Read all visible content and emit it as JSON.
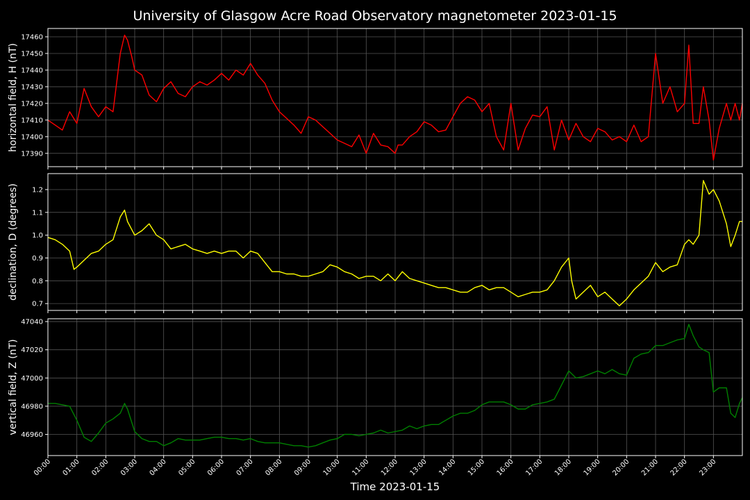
{
  "title": "University of Glasgow Acre Road Observatory magnetometer 2023-01-15",
  "xlabel": "Time 2023-01-15",
  "x_ticks": [
    "00:00",
    "01:00",
    "02:00",
    "03:00",
    "04:00",
    "05:00",
    "06:00",
    "07:00",
    "08:00",
    "09:00",
    "10:00",
    "11:00",
    "12:00",
    "13:00",
    "14:00",
    "15:00",
    "16:00",
    "17:00",
    "18:00",
    "19:00",
    "20:00",
    "21:00",
    "22:00",
    "23:00"
  ],
  "chart_data": [
    {
      "type": "line",
      "ylabel": "horizontal field, H (nT)",
      "color": "#ff0000",
      "x_unit": "hours",
      "xlim": [
        0,
        24
      ],
      "ylim": [
        17382,
        17465
      ],
      "yticks": [
        17390,
        17400,
        17410,
        17420,
        17430,
        17440,
        17450,
        17460
      ],
      "grid": true,
      "x": [
        0,
        0.25,
        0.5,
        0.75,
        1.0,
        1.25,
        1.5,
        1.75,
        2.0,
        2.25,
        2.5,
        2.65,
        2.75,
        2.9,
        3.0,
        3.25,
        3.5,
        3.75,
        4.0,
        4.25,
        4.5,
        4.75,
        5.0,
        5.25,
        5.5,
        5.75,
        6.0,
        6.25,
        6.5,
        6.75,
        7.0,
        7.25,
        7.5,
        7.75,
        8.0,
        8.25,
        8.5,
        8.75,
        9.0,
        9.25,
        9.5,
        9.75,
        10.0,
        10.25,
        10.5,
        10.75,
        11.0,
        11.25,
        11.5,
        11.75,
        12.0,
        12.1,
        12.25,
        12.5,
        12.75,
        13.0,
        13.25,
        13.5,
        13.75,
        14.0,
        14.25,
        14.5,
        14.75,
        15.0,
        15.25,
        15.5,
        15.75,
        16.0,
        16.25,
        16.5,
        16.75,
        17.0,
        17.25,
        17.5,
        17.75,
        18.0,
        18.25,
        18.5,
        18.75,
        19.0,
        19.25,
        19.5,
        19.75,
        20.0,
        20.25,
        20.5,
        20.75,
        21.0,
        21.25,
        21.5,
        21.75,
        22.0,
        22.15,
        22.3,
        22.5,
        22.65,
        22.85,
        23.0,
        23.2,
        23.45,
        23.6,
        23.75,
        23.9,
        24.0
      ],
      "y": [
        17410,
        17407,
        17404,
        17415,
        17408,
        17429,
        17418,
        17412,
        17418,
        17415,
        17450,
        17461,
        17458,
        17448,
        17440,
        17437,
        17425,
        17421,
        17429,
        17433,
        17426,
        17424,
        17430,
        17433,
        17431,
        17434,
        17438,
        17434,
        17440,
        17437,
        17444,
        17437,
        17432,
        17422,
        17415,
        17411,
        17407,
        17402,
        17412,
        17410,
        17406,
        17402,
        17398,
        17396,
        17394,
        17401,
        17390,
        17402,
        17395,
        17394,
        17390,
        17395,
        17395,
        17400,
        17403,
        17409,
        17407,
        17403,
        17404,
        17412,
        17420,
        17424,
        17422,
        17415,
        17420,
        17400,
        17392,
        17420,
        17392,
        17405,
        17413,
        17412,
        17418,
        17392,
        17410,
        17398,
        17408,
        17400,
        17397,
        17405,
        17403,
        17398,
        17400,
        17397,
        17407,
        17397,
        17400,
        17450,
        17420,
        17430,
        17415,
        17420,
        17455,
        17408,
        17408,
        17430,
        17410,
        17386,
        17405,
        17420,
        17410,
        17420,
        17410,
        17420
      ]
    },
    {
      "type": "line",
      "ylabel": "declination, D (degrees)",
      "color": "#ffff00",
      "x_unit": "hours",
      "xlim": [
        0,
        24
      ],
      "ylim": [
        0.67,
        1.27
      ],
      "yticks": [
        0.7,
        0.8,
        0.9,
        1.0,
        1.1,
        1.2
      ],
      "grid": true,
      "x": [
        0,
        0.25,
        0.5,
        0.75,
        0.9,
        1.0,
        1.25,
        1.5,
        1.75,
        2.0,
        2.25,
        2.5,
        2.65,
        2.75,
        3.0,
        3.25,
        3.5,
        3.75,
        4.0,
        4.25,
        4.5,
        4.75,
        5.0,
        5.25,
        5.5,
        5.75,
        6.0,
        6.25,
        6.5,
        6.75,
        7.0,
        7.25,
        7.5,
        7.75,
        8.0,
        8.25,
        8.5,
        8.75,
        9.0,
        9.25,
        9.5,
        9.75,
        10.0,
        10.25,
        10.5,
        10.75,
        11.0,
        11.25,
        11.5,
        11.75,
        12.0,
        12.25,
        12.5,
        12.75,
        13.0,
        13.25,
        13.5,
        13.75,
        14.0,
        14.25,
        14.5,
        14.75,
        15.0,
        15.25,
        15.5,
        15.75,
        16.0,
        16.25,
        16.5,
        16.75,
        17.0,
        17.25,
        17.5,
        17.75,
        18.0,
        18.1,
        18.25,
        18.5,
        18.75,
        19.0,
        19.25,
        19.5,
        19.75,
        20.0,
        20.25,
        20.5,
        20.75,
        21.0,
        21.25,
        21.5,
        21.75,
        22.0,
        22.15,
        22.3,
        22.5,
        22.65,
        22.85,
        23.0,
        23.2,
        23.45,
        23.6,
        23.75,
        23.9,
        24.0
      ],
      "y": [
        0.99,
        0.98,
        0.96,
        0.93,
        0.85,
        0.86,
        0.89,
        0.92,
        0.93,
        0.96,
        0.98,
        1.08,
        1.11,
        1.06,
        1.0,
        1.02,
        1.05,
        1.0,
        0.98,
        0.94,
        0.95,
        0.96,
        0.94,
        0.93,
        0.92,
        0.93,
        0.92,
        0.93,
        0.93,
        0.9,
        0.93,
        0.92,
        0.88,
        0.84,
        0.84,
        0.83,
        0.83,
        0.82,
        0.82,
        0.83,
        0.84,
        0.87,
        0.86,
        0.84,
        0.83,
        0.81,
        0.82,
        0.82,
        0.8,
        0.83,
        0.8,
        0.84,
        0.81,
        0.8,
        0.79,
        0.78,
        0.77,
        0.77,
        0.76,
        0.75,
        0.75,
        0.77,
        0.78,
        0.76,
        0.77,
        0.77,
        0.75,
        0.73,
        0.74,
        0.75,
        0.75,
        0.76,
        0.8,
        0.86,
        0.9,
        0.8,
        0.72,
        0.75,
        0.78,
        0.73,
        0.75,
        0.72,
        0.69,
        0.72,
        0.76,
        0.79,
        0.82,
        0.88,
        0.84,
        0.86,
        0.87,
        0.96,
        0.98,
        0.96,
        1.0,
        1.24,
        1.18,
        1.2,
        1.15,
        1.05,
        0.95,
        1.0,
        1.06,
        1.06
      ]
    },
    {
      "type": "line",
      "ylabel": "vertical field, Z (nT)",
      "color": "#008000",
      "x_unit": "hours",
      "xlim": [
        0,
        24
      ],
      "ylim": [
        46945,
        47042
      ],
      "yticks": [
        46960,
        46980,
        47000,
        47020,
        47040
      ],
      "grid": true,
      "x": [
        0,
        0.25,
        0.5,
        0.75,
        1.0,
        1.25,
        1.5,
        1.75,
        2.0,
        2.25,
        2.5,
        2.65,
        2.75,
        3.0,
        3.25,
        3.5,
        3.75,
        4.0,
        4.25,
        4.5,
        4.75,
        5.0,
        5.25,
        5.5,
        5.75,
        6.0,
        6.25,
        6.5,
        6.75,
        7.0,
        7.25,
        7.5,
        7.75,
        8.0,
        8.25,
        8.5,
        8.75,
        9.0,
        9.25,
        9.5,
        9.75,
        10.0,
        10.25,
        10.5,
        10.75,
        11.0,
        11.25,
        11.5,
        11.75,
        12.0,
        12.25,
        12.5,
        12.75,
        13.0,
        13.25,
        13.5,
        13.75,
        14.0,
        14.25,
        14.5,
        14.75,
        15.0,
        15.25,
        15.5,
        15.75,
        16.0,
        16.25,
        16.5,
        16.75,
        17.0,
        17.25,
        17.5,
        17.75,
        18.0,
        18.25,
        18.5,
        18.75,
        19.0,
        19.25,
        19.5,
        19.75,
        20.0,
        20.25,
        20.5,
        20.75,
        21.0,
        21.25,
        21.5,
        21.75,
        22.0,
        22.15,
        22.3,
        22.5,
        22.65,
        22.85,
        23.0,
        23.2,
        23.45,
        23.6,
        23.75,
        23.9,
        24.0
      ],
      "y": [
        46982,
        46982,
        46981,
        46980,
        46970,
        46958,
        46955,
        46961,
        46968,
        46971,
        46975,
        46982,
        46978,
        46962,
        46957,
        46955,
        46955,
        46952,
        46954,
        46957,
        46956,
        46956,
        46956,
        46957,
        46958,
        46958,
        46957,
        46957,
        46956,
        46957,
        46955,
        46954,
        46954,
        46954,
        46953,
        46952,
        46952,
        46951,
        46952,
        46954,
        46956,
        46957,
        46960,
        46960,
        46959,
        46960,
        46961,
        46963,
        46961,
        46962,
        46963,
        46966,
        46964,
        46966,
        46967,
        46967,
        46970,
        46973,
        46975,
        46975,
        46977,
        46981,
        46983,
        46983,
        46983,
        46981,
        46978,
        46978,
        46981,
        46982,
        46983,
        46985,
        46995,
        47005,
        47000,
        47001,
        47003,
        47005,
        47003,
        47006,
        47003,
        47002,
        47014,
        47017,
        47018,
        47023,
        47023,
        47025,
        47027,
        47028,
        47038,
        47030,
        47022,
        47020,
        47018,
        46990,
        46993,
        46993,
        46975,
        46972,
        46982,
        46986
      ]
    }
  ]
}
